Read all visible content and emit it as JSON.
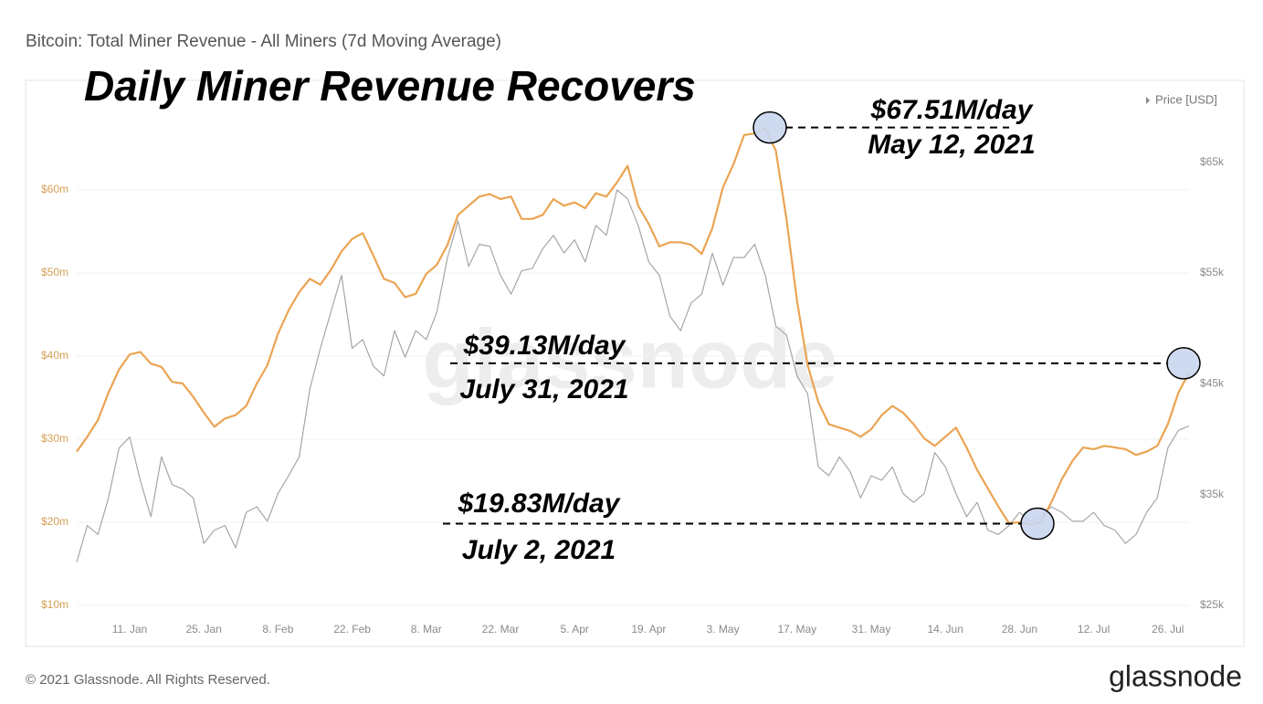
{
  "chart_data": {
    "type": "line",
    "title": "Bitcoin: Total Miner Revenue - All Miners (7d Moving Average)",
    "headline": "Daily Miner Revenue Recovers",
    "watermark": "glassnode",
    "footer": "© 2021 Glassnode. All Rights Reserved.",
    "brand": "glassnode",
    "legend": "top-right",
    "grid": true,
    "categories": [
      null,
      null,
      null,
      null,
      null,
      "11. Jan",
      null,
      null,
      null,
      null,
      null,
      null,
      "25. Jan",
      null,
      null,
      null,
      null,
      null,
      null,
      "8. Feb",
      null,
      null,
      null,
      null,
      null,
      null,
      "22. Feb",
      null,
      null,
      null,
      null,
      null,
      null,
      "8. Mar",
      null,
      null,
      null,
      null,
      null,
      null,
      "22. Mar",
      null,
      null,
      null,
      null,
      null,
      null,
      "5. Apr",
      null,
      null,
      null,
      null,
      null,
      null,
      "19. Apr",
      null,
      null,
      null,
      null,
      null,
      null,
      "3. May",
      null,
      null,
      null,
      null,
      null,
      null,
      "17. May",
      null,
      null,
      null,
      null,
      null,
      null,
      "31. May",
      null,
      null,
      null,
      null,
      null,
      null,
      "14. Jun",
      null,
      null,
      null,
      null,
      null,
      null,
      "28. Jun",
      null,
      null,
      null,
      null,
      null,
      null,
      "12. Jul",
      null,
      null,
      null,
      null,
      null,
      null,
      "26. Jul",
      null,
      null
    ],
    "series": [
      {
        "color": "#eba453",
        "axis": "y",
        "values": [
          28.5,
          30.3,
          32.3,
          35.6,
          38.4,
          40.2,
          40.5,
          39.1,
          38.7,
          36.9,
          36.7,
          35.1,
          33.2,
          31.5,
          32.5,
          32.9,
          34.0,
          36.7,
          38.9,
          42.7,
          45.5,
          47.7,
          49.3,
          48.6,
          50.4,
          52.6,
          54.1,
          54.8,
          52.1,
          49.3,
          48.8,
          47.1,
          47.5,
          49.9,
          51.0,
          53.4,
          57.0,
          58.1,
          59.2,
          59.5,
          58.9,
          59.2,
          56.5,
          56.5,
          57.0,
          58.9,
          58.1,
          58.5,
          57.8,
          59.6,
          59.2,
          60.9,
          62.9,
          58.1,
          55.9,
          53.2,
          53.7,
          53.7,
          53.4,
          52.3,
          55.4,
          60.3,
          63.1,
          66.6,
          66.8,
          67.4,
          64.7,
          56.5,
          46.6,
          38.9,
          34.5,
          31.8,
          31.4,
          31.0,
          30.3,
          31.2,
          32.9,
          34.0,
          33.2,
          31.8,
          30.1,
          29.2,
          30.3,
          31.4,
          29.0,
          26.3,
          24.1,
          21.9,
          19.9,
          20.0,
          19.7,
          20.0,
          22.4,
          25.2,
          27.4,
          29.0,
          28.8,
          29.2,
          29.0,
          28.8,
          28.1,
          28.5,
          29.2,
          31.8,
          35.6,
          38.0
        ]
      },
      {
        "name": "Price [USD]",
        "color": "#a6a6a6",
        "axis": "y2",
        "values": [
          28.9,
          32.2,
          31.4,
          34.7,
          39.2,
          40.2,
          36.3,
          33.0,
          38.4,
          35.9,
          35.5,
          34.7,
          30.6,
          31.8,
          32.2,
          30.2,
          33.4,
          33.9,
          32.6,
          35.1,
          36.7,
          38.4,
          44.5,
          48.2,
          51.5,
          54.8,
          48.2,
          49.0,
          46.6,
          45.7,
          49.8,
          47.4,
          49.8,
          49.0,
          51.5,
          56.4,
          59.7,
          55.6,
          57.6,
          57.4,
          54.8,
          53.1,
          55.2,
          55.4,
          57.2,
          58.4,
          56.8,
          58.0,
          56.0,
          59.3,
          58.4,
          62.5,
          61.7,
          59.3,
          56.0,
          54.8,
          51.1,
          49.8,
          52.3,
          53.1,
          56.8,
          53.9,
          56.4,
          56.4,
          57.6,
          54.8,
          50.2,
          49.4,
          45.7,
          44.1,
          37.5,
          36.7,
          38.4,
          37.1,
          34.7,
          36.7,
          36.3,
          37.5,
          35.1,
          34.3,
          35.1,
          38.8,
          37.5,
          35.1,
          33.0,
          34.3,
          31.8,
          31.4,
          32.2,
          33.4,
          32.6,
          33.0,
          33.9,
          33.4,
          32.6,
          32.6,
          33.4,
          32.2,
          31.8,
          30.6,
          31.4,
          33.4,
          34.7,
          39.2,
          40.8,
          41.2
        ]
      }
    ],
    "ylim": [
      10,
      70
    ],
    "yticks": [
      {
        "value": 10,
        "label": "$10m"
      },
      {
        "value": 20,
        "label": "$20m"
      },
      {
        "value": 30,
        "label": "$30m"
      },
      {
        "value": 40,
        "label": "$40m"
      },
      {
        "value": 50,
        "label": "$50m"
      },
      {
        "value": 60,
        "label": "$60m"
      }
    ],
    "y2lim": [
      25,
      70
    ],
    "y2ticks": [
      {
        "value": 25,
        "label": "$25k"
      },
      {
        "value": 35,
        "label": "$35k"
      },
      {
        "value": 45,
        "label": "$45k"
      },
      {
        "value": 55,
        "label": "$55k"
      },
      {
        "value": 65,
        "label": "$65k"
      }
    ],
    "annotations": [
      {
        "text": "$67.51M/day",
        "date": "May 12, 2021",
        "value": 67.51
      },
      {
        "text": "$39.13M/day",
        "date": "July 31, 2021",
        "value": 39.13
      },
      {
        "text": "$19.83M/day",
        "date": "July 2, 2021",
        "value": 19.83
      }
    ]
  }
}
